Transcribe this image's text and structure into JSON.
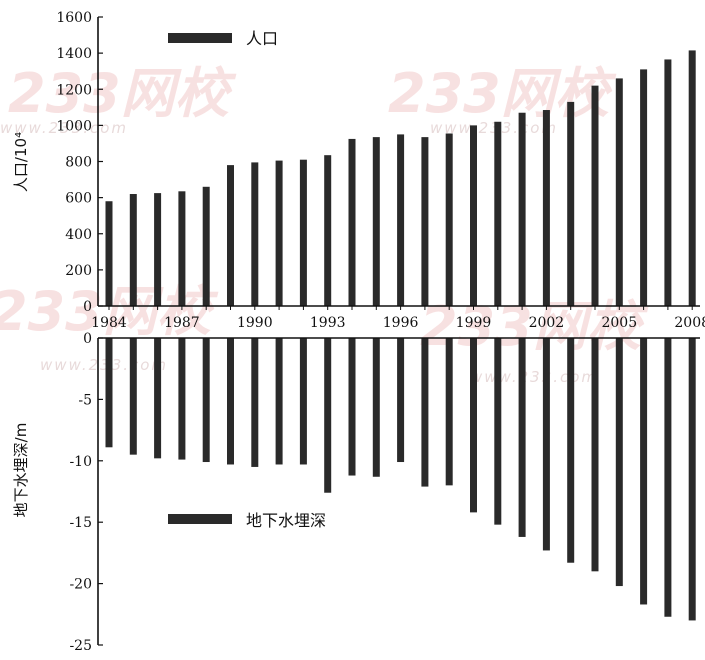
{
  "chart_data": {
    "type": "bar",
    "years": [
      1984,
      1985,
      1986,
      1987,
      1988,
      1989,
      1990,
      1991,
      1992,
      1993,
      1994,
      1995,
      1996,
      1997,
      1998,
      1999,
      2000,
      2001,
      2002,
      2003,
      2004,
      2005,
      2006,
      2007,
      2008
    ],
    "x_tick_labels": [
      "1984",
      "1987",
      "1990",
      "1993",
      "1996",
      "1999",
      "2002",
      "2005",
      "2008"
    ],
    "colors": {
      "bar": "#2a2a2a",
      "axis": "#111111",
      "watermark": "#f2c9c9"
    },
    "population_panel": {
      "ylabel": "人口/10⁴",
      "ylim": [
        0,
        1600
      ],
      "y_ticks": [
        "0",
        "200",
        "400",
        "600",
        "800",
        "1000",
        "1200",
        "1400",
        "1600"
      ],
      "legend": "人口",
      "values": [
        580,
        620,
        625,
        635,
        660,
        780,
        795,
        805,
        810,
        835,
        925,
        935,
        950,
        935,
        955,
        1000,
        1020,
        1070,
        1085,
        1130,
        1220,
        1260,
        1310,
        1365,
        1415
      ]
    },
    "groundwater_panel": {
      "ylabel": "地下水埋深/m",
      "ylim": [
        -25,
        0
      ],
      "y_ticks": [
        "0",
        "-5",
        "-10",
        "-15",
        "-20",
        "-25"
      ],
      "legend": "地下水埋深",
      "values": [
        -8.9,
        -9.5,
        -9.8,
        -9.9,
        -10.1,
        -10.3,
        -10.5,
        -10.3,
        -10.3,
        -12.6,
        -11.2,
        -11.3,
        -10.1,
        -12.1,
        -12.0,
        -14.2,
        -15.2,
        -16.2,
        -17.3,
        -18.3,
        -19.0,
        -20.2,
        -21.7,
        -22.7,
        -23.0
      ]
    }
  },
  "watermarks": [
    "233网校",
    "www.233.com"
  ]
}
